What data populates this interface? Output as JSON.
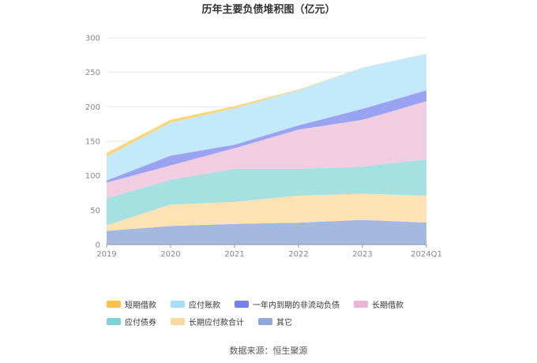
{
  "chart_data": {
    "type": "area",
    "stacked": true,
    "title": "历年主要负债堆积图（亿元）",
    "categories": [
      "2019",
      "2020",
      "2021",
      "2022",
      "2023",
      "2024Q1"
    ],
    "ylim": [
      0,
      300
    ],
    "yticks": [
      0,
      50,
      100,
      150,
      200,
      250,
      300
    ],
    "grid": true,
    "legend_position": "bottom",
    "series": [
      {
        "name": "其它",
        "color": "#a4b9e0",
        "values": [
          20,
          27,
          30,
          32,
          36,
          32
        ]
      },
      {
        "name": "长期应付款合计",
        "color": "#fde3b4",
        "values": [
          8,
          31,
          32,
          39,
          38,
          39
        ]
      },
      {
        "name": "应付债券",
        "color": "#a6e1e1",
        "values": [
          39,
          36,
          48,
          39,
          39,
          53
        ]
      },
      {
        "name": "长期借款",
        "color": "#f0cde1",
        "values": [
          23,
          21,
          30,
          57,
          68,
          84
        ]
      },
      {
        "name": "一年内到期的非流动负债",
        "color": "#9aa3f2",
        "values": [
          3,
          14,
          5,
          6,
          16,
          16
        ]
      },
      {
        "name": "应付账款",
        "color": "#c4e9fa",
        "values": [
          35,
          48,
          53,
          51,
          60,
          53
        ]
      },
      {
        "name": "短期借款",
        "color": "#fbd672",
        "values": [
          5,
          4,
          3,
          1,
          0,
          0
        ]
      }
    ]
  },
  "legend": [
    {
      "label": "短期借款",
      "color": "#f8c43c"
    },
    {
      "label": "应付账款",
      "color": "#a9def8"
    },
    {
      "label": "一年内到期的非流动负债",
      "color": "#7a7ff0"
    },
    {
      "label": "长期借款",
      "color": "#e8b5d5"
    },
    {
      "label": "应付债券",
      "color": "#7dd3d3"
    },
    {
      "label": "长期应付款合计",
      "color": "#fcd9a0"
    },
    {
      "label": "其它",
      "color": "#8fa7d9"
    }
  ],
  "source": "数据来源：恒生聚源"
}
